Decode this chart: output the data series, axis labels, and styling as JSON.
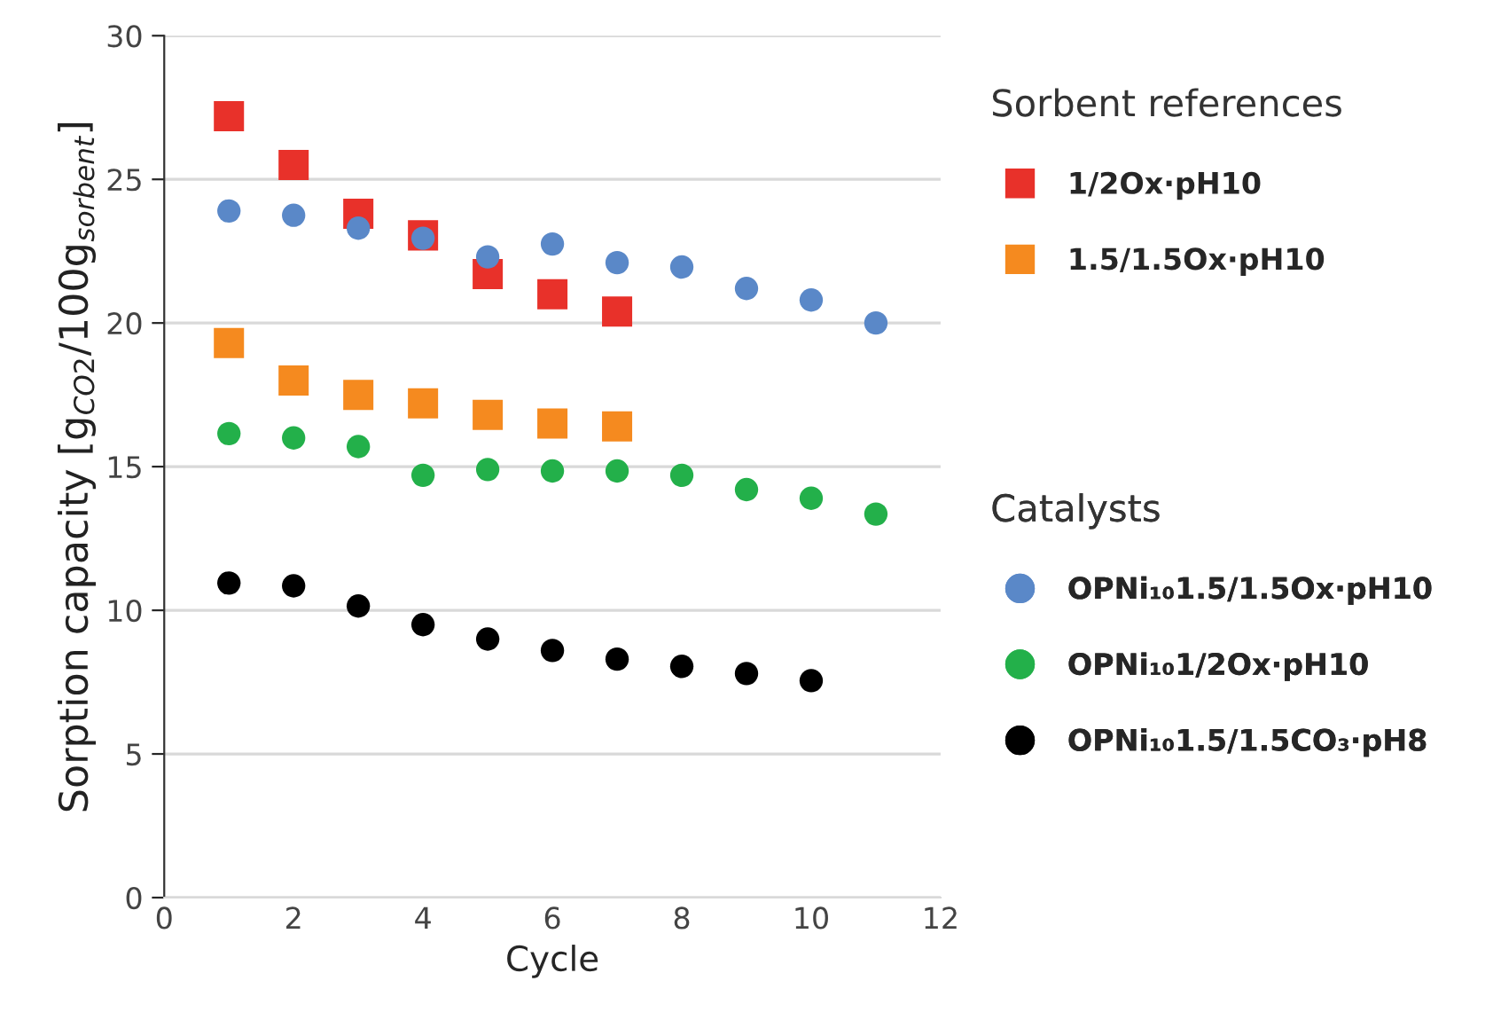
{
  "chart_data": {
    "type": "scatter",
    "xlabel": "Cycle",
    "ylabel": "Sorption capacity [g$_{CO2}$/100g$_{sorbent}$]",
    "xlim": [
      0,
      12
    ],
    "xticks": [
      0,
      2,
      4,
      6,
      8,
      10,
      12
    ],
    "ylim": [
      0,
      30
    ],
    "yticks": [
      0,
      5,
      10,
      15,
      20,
      25,
      30
    ],
    "grid": "y",
    "legend": "right",
    "legend_title": "Sorbent references",
    "annotations": [
      "Catalysts"
    ],
    "series": [
      {
        "name": "1/2Ox·pH10",
        "color": "#e8312a",
        "marker": "square",
        "x": [
          1,
          2,
          3,
          4,
          5,
          6,
          7
        ],
        "values": [
          27.2,
          25.5,
          23.8,
          23.05,
          21.7,
          21.0,
          20.4
        ]
      },
      {
        "name": "1.5/1.5Ox·pH10",
        "color": "#f58a1f",
        "marker": "square",
        "x": [
          1,
          2,
          3,
          4,
          5,
          6,
          7
        ],
        "values": [
          19.3,
          18.0,
          17.5,
          17.2,
          16.8,
          16.5,
          16.4
        ]
      },
      {
        "name": "OPNi₁₀1.5/1.5Ox·pH10",
        "color": "#5a88c8",
        "marker": "circle",
        "x": [
          1,
          2,
          3,
          4,
          5,
          6,
          7,
          8,
          9,
          10,
          11
        ],
        "values": [
          23.9,
          23.75,
          23.3,
          22.95,
          22.3,
          22.75,
          22.1,
          21.95,
          21.2,
          20.8,
          20.0
        ]
      },
      {
        "name": "OPNi₁₀1/2Ox·pH10",
        "color": "#23b04a",
        "marker": "circle",
        "x": [
          1,
          2,
          3,
          4,
          5,
          6,
          7,
          8,
          9,
          10,
          11
        ],
        "values": [
          16.15,
          16.0,
          15.7,
          14.7,
          14.9,
          14.85,
          14.85,
          14.7,
          14.2,
          13.9,
          13.35
        ]
      },
      {
        "name": "OPNi₁₀1.5/1.5CO₃·pH8",
        "color": "#000000",
        "marker": "circle",
        "x": [
          1,
          2,
          3,
          4,
          5,
          6,
          7,
          8,
          9,
          10
        ],
        "values": [
          10.95,
          10.85,
          10.15,
          9.5,
          9.0,
          8.6,
          8.3,
          8.05,
          7.8,
          7.55
        ]
      }
    ]
  }
}
